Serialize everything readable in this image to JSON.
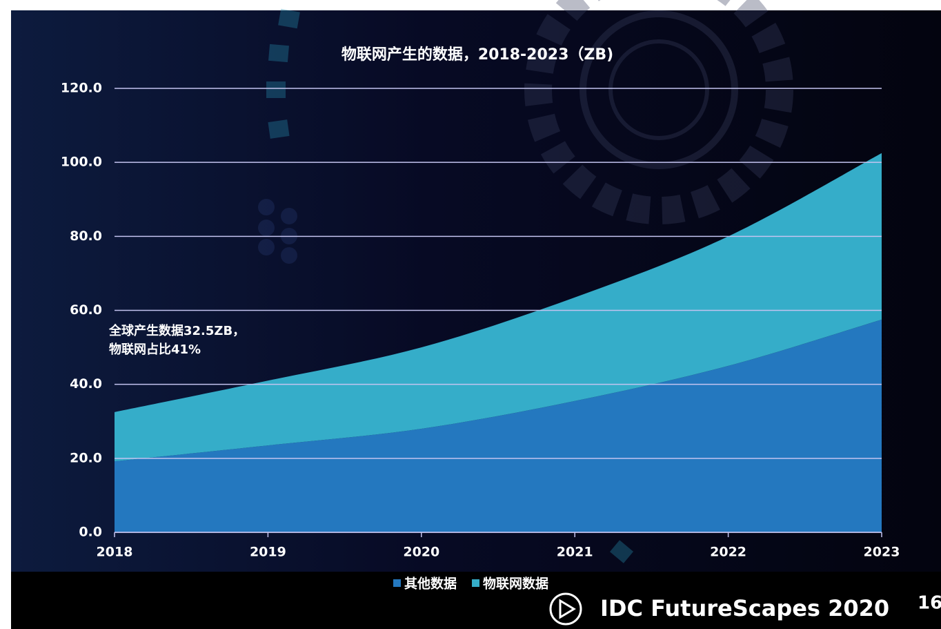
{
  "chart_data": {
    "type": "stacked-area",
    "title": "物联网产生的数据，2018-2023（ZB)",
    "categories": [
      "2018",
      "2019",
      "2020",
      "2021",
      "2022",
      "2023"
    ],
    "series": [
      {
        "name": "其他数据",
        "color": "#2478bf",
        "values": [
          19.2,
          23.5,
          28,
          35.5,
          45,
          57.5
        ]
      },
      {
        "name": "物联网数据",
        "color": "#35adc9",
        "values": [
          13.3,
          17.5,
          22,
          28,
          35,
          45
        ]
      }
    ],
    "ylim": [
      0,
      120
    ],
    "yticks": [
      {
        "value": 0,
        "label": "0.0"
      },
      {
        "value": 20,
        "label": "20.0"
      },
      {
        "value": 40,
        "label": "40.0"
      },
      {
        "value": 60,
        "label": "60.0"
      },
      {
        "value": 80,
        "label": "80.0"
      },
      {
        "value": 100,
        "label": "100.0"
      },
      {
        "value": 120,
        "label": "120.0"
      }
    ],
    "grid": true,
    "annotations": [
      "全球产生数据32.5ZB，",
      "物联网占比41%"
    ]
  },
  "footer": {
    "brand": "IDC FutureScapes 2020",
    "page_number": "16"
  }
}
